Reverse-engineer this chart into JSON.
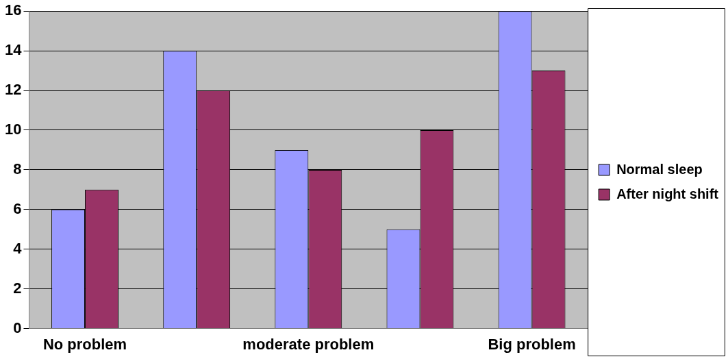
{
  "chart_data": {
    "type": "bar",
    "categories": [
      "No problem",
      null,
      "moderate problem",
      null,
      "Big problem"
    ],
    "series": [
      {
        "name": "Normal sleep",
        "color": "#9999ff",
        "values": [
          6,
          14,
          9,
          5,
          16
        ]
      },
      {
        "name": "After night shift",
        "color": "#993366",
        "values": [
          7,
          12,
          8,
          10,
          13
        ]
      }
    ],
    "ylim": [
      0,
      16
    ],
    "yticks": [
      0,
      2,
      4,
      6,
      8,
      10,
      12,
      14,
      16
    ],
    "grid": "y",
    "legend": "right"
  }
}
